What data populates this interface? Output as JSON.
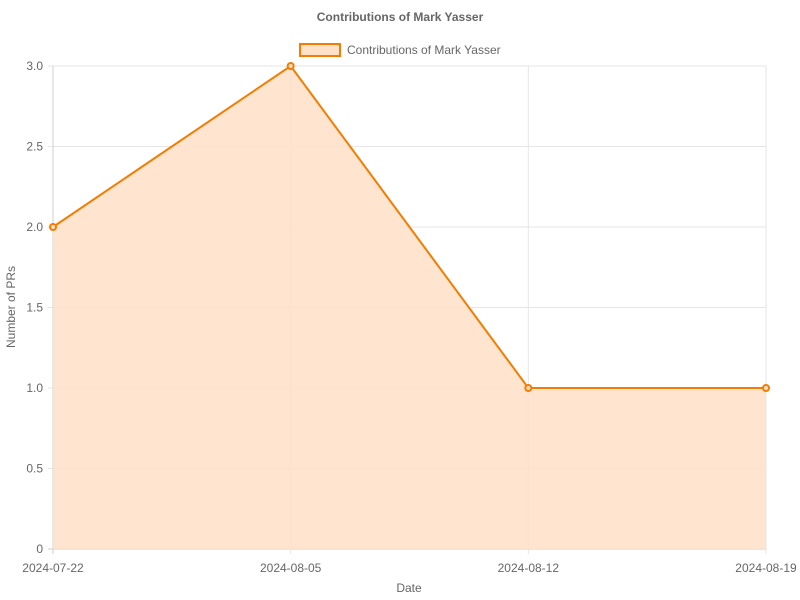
{
  "chart_data": {
    "type": "area",
    "title": "Contributions of Mark Yasser",
    "xlabel": "Date",
    "ylabel": "Number of PRs",
    "x": [
      "2024-07-22",
      "2024-08-05",
      "2024-08-12",
      "2024-08-19"
    ],
    "series": [
      {
        "name": "Contributions of Mark Yasser",
        "values": [
          2,
          3,
          1,
          1
        ],
        "line_color": "#f57c00",
        "fill_color": "#ffe0c8"
      }
    ],
    "x_tick_labels": [
      "2024-07-22",
      "2024-08-05",
      "2024-08-12",
      "2024-08-19"
    ],
    "y_tick_labels": [
      "0",
      "0.5",
      "1.0",
      "1.5",
      "2.0",
      "2.5",
      "3.0"
    ],
    "ylim": [
      0,
      3
    ],
    "grid": true,
    "legend_position": "top-center"
  }
}
